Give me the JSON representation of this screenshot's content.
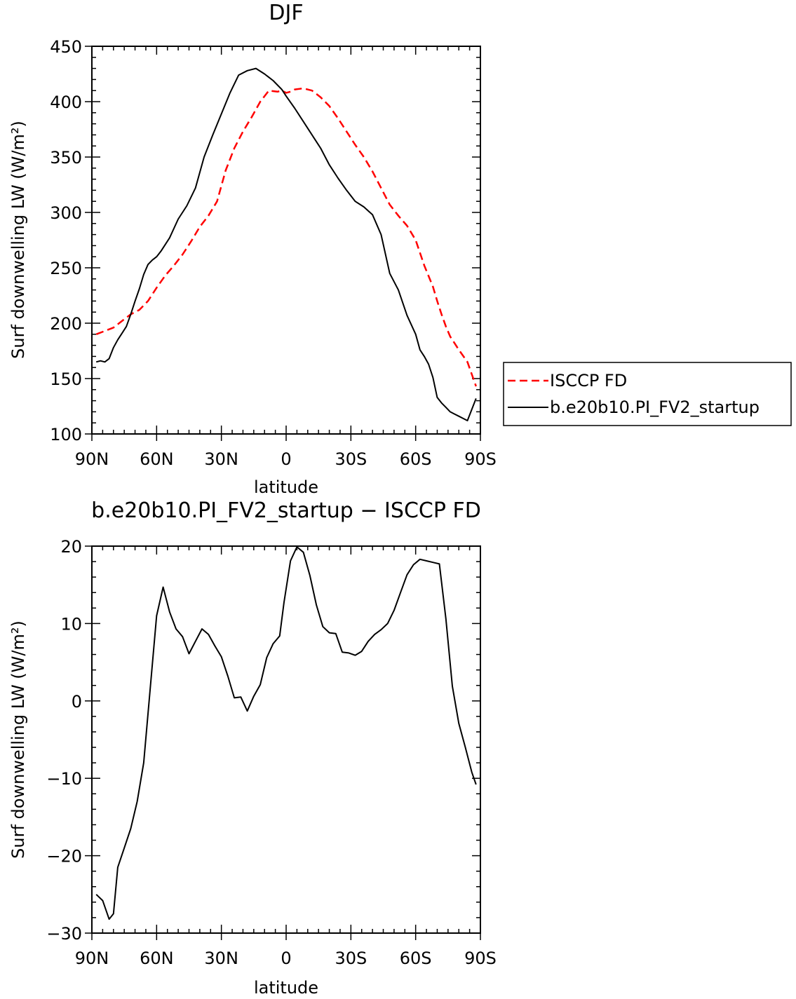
{
  "chart_data": [
    {
      "type": "line",
      "title": "DJF",
      "xlabel": "latitude",
      "ylabel": "Surf downwelling LW (W/m²)",
      "xlim": [
        90,
        -90
      ],
      "ylim": [
        100,
        450
      ],
      "xticks": [
        90,
        60,
        30,
        0,
        -30,
        -60,
        -90
      ],
      "xticklabels": [
        "90N",
        "60N",
        "30N",
        "0",
        "30S",
        "60S",
        "90S"
      ],
      "yticks": [
        100,
        150,
        200,
        250,
        300,
        350,
        400,
        450
      ],
      "yticklabels": [
        "100",
        "150",
        "200",
        "250",
        "300",
        "350",
        "400",
        "450"
      ],
      "legend_position": "right",
      "series": [
        {
          "name": "ISCCP FD",
          "color": "#ff0000",
          "style": "dashed",
          "x": [
            88,
            84,
            80,
            76,
            72,
            68,
            64,
            60,
            56,
            52,
            48,
            44,
            40,
            36,
            32,
            28,
            24,
            20,
            16,
            12,
            8,
            4,
            2,
            0,
            -2,
            -4,
            -8,
            -12,
            -16,
            -20,
            -24,
            -28,
            -32,
            -36,
            -40,
            -44,
            -48,
            -52,
            -56,
            -60,
            -64,
            -68,
            -70,
            -72,
            -74,
            -76,
            -78,
            -80,
            -84,
            -88
          ],
          "values": [
            190,
            193,
            196,
            202,
            208,
            212,
            220,
            232,
            243,
            252,
            262,
            274,
            287,
            297,
            310,
            338,
            358,
            373,
            386,
            400,
            410,
            409,
            410,
            408,
            409,
            411,
            412,
            410,
            404,
            396,
            385,
            373,
            361,
            350,
            337,
            322,
            307,
            297,
            288,
            275,
            252,
            233,
            220,
            208,
            197,
            188,
            182,
            176,
            165,
            143
          ]
        },
        {
          "name": "b.e20b10.PI_FV2_startup",
          "color": "#000000",
          "style": "solid",
          "x": [
            88,
            86,
            84,
            82,
            80,
            78,
            76,
            74,
            72,
            70,
            68,
            66,
            64,
            62,
            60,
            58,
            54,
            50,
            46,
            42,
            38,
            34,
            30,
            26,
            22,
            18,
            14,
            10,
            6,
            2,
            0,
            -4,
            -8,
            -12,
            -16,
            -20,
            -24,
            -28,
            -32,
            -36,
            -40,
            -44,
            -48,
            -52,
            -56,
            -60,
            -62,
            -64,
            -66,
            -68,
            -70,
            -72,
            -74,
            -76,
            -78,
            -80,
            -82,
            -84,
            -88
          ],
          "values": [
            165,
            166,
            165,
            168,
            178,
            185,
            191,
            197,
            208,
            220,
            231,
            244,
            253,
            257,
            260,
            265,
            277,
            294,
            306,
            322,
            350,
            370,
            389,
            408,
            424,
            428,
            430,
            425,
            419,
            411,
            405,
            394,
            382,
            370,
            358,
            343,
            331,
            320,
            310,
            305,
            298,
            280,
            245,
            230,
            207,
            190,
            176,
            170,
            163,
            151,
            133,
            128,
            124,
            120,
            118,
            116,
            114,
            112,
            132
          ]
        }
      ]
    },
    {
      "type": "line",
      "title": "b.e20b10.PI_FV2_startup − ISCCP FD",
      "xlabel": "latitude",
      "ylabel": "Surf downwelling LW (W/m²)",
      "xlim": [
        90,
        -90
      ],
      "ylim": [
        -30,
        20
      ],
      "xticks": [
        90,
        60,
        30,
        0,
        -30,
        -60,
        -90
      ],
      "xticklabels": [
        "90N",
        "60N",
        "30N",
        "0",
        "30S",
        "60S",
        "90S"
      ],
      "yticks": [
        -30,
        -20,
        -10,
        0,
        10,
        20
      ],
      "yticklabels": [
        "−30",
        "−20",
        "−10",
        "0",
        "10",
        "20"
      ],
      "series": [
        {
          "name": "",
          "color": "#000000",
          "style": "solid",
          "x": [
            88,
            85,
            82,
            80,
            78,
            75,
            72,
            69,
            66,
            63,
            60,
            57,
            54,
            51,
            48,
            45,
            42,
            39,
            36,
            33,
            30,
            27,
            24,
            21,
            18,
            15,
            12,
            9,
            6,
            3,
            1,
            -2,
            -5,
            -8,
            -11,
            -14,
            -17,
            -20,
            -23,
            -26,
            -29,
            -32,
            -35,
            -38,
            -41,
            -44,
            -47,
            -50,
            -53,
            -56,
            -59,
            -62,
            -65,
            -68,
            -71,
            -74,
            -77,
            -80,
            -83,
            -86,
            -88
          ],
          "values": [
            -25,
            -25.8,
            -28.2,
            -27.5,
            -21.5,
            -19,
            -16.5,
            -13,
            -8,
            1.5,
            11,
            14.7,
            11.5,
            9.3,
            8.3,
            6.1,
            7.7,
            9.3,
            8.6,
            7.1,
            5.7,
            3.2,
            0.4,
            0.5,
            -1.3,
            0.6,
            2.1,
            5.6,
            7.4,
            8.4,
            12.7,
            18.1,
            19.9,
            19.2,
            16.2,
            12.4,
            9.6,
            8.8,
            8.7,
            6.3,
            6.2,
            5.9,
            6.4,
            7.7,
            8.6,
            9.2,
            10,
            11.7,
            14,
            16.3,
            17.6,
            18.3,
            18.1,
            17.9,
            17.7,
            10.6,
            1.9,
            -2.9,
            -6,
            -9.2,
            -10.8
          ]
        }
      ]
    }
  ]
}
